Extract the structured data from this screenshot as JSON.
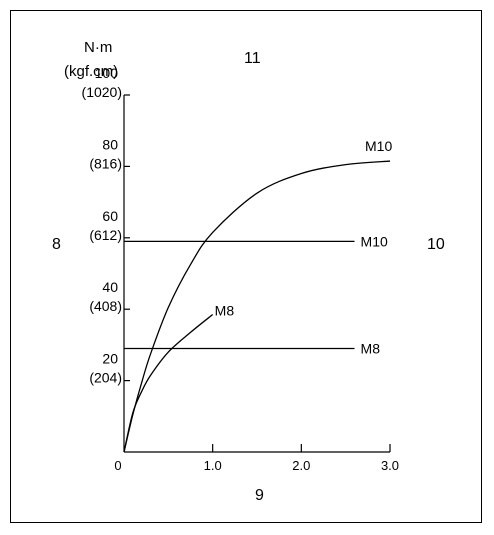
{
  "chart_data": {
    "type": "line",
    "ylabel_lines": [
      "N·m",
      "(kgf.cm)"
    ],
    "xlim": [
      0,
      3.0
    ],
    "ylim": [
      0,
      100
    ],
    "x_ticks": [
      {
        "value": 0,
        "label": "0"
      },
      {
        "value": 1.0,
        "label": "1.0"
      },
      {
        "value": 2.0,
        "label": "2.0"
      },
      {
        "value": 3.0,
        "label": "3.0"
      }
    ],
    "y_ticks": [
      {
        "value": 20,
        "label": "20",
        "sub": "(204)"
      },
      {
        "value": 40,
        "label": "40",
        "sub": "(408)"
      },
      {
        "value": 60,
        "label": "60",
        "sub": "(612)"
      },
      {
        "value": 80,
        "label": "80",
        "sub": "(816)"
      },
      {
        "value": 100,
        "label": "100",
        "sub": "(1020)"
      }
    ],
    "series": [
      {
        "name": "M10",
        "kind": "curve",
        "x": [
          0,
          0.1,
          0.2,
          0.3,
          0.5,
          0.75,
          1.0,
          1.5,
          2.0,
          2.5,
          3.0
        ],
        "y": [
          0,
          10.5,
          19.5,
          27.5,
          40.5,
          52.5,
          61.5,
          72.5,
          78.0,
          80.5,
          81.5
        ]
      },
      {
        "name": "M10",
        "kind": "flat",
        "x": [
          0,
          2.6
        ],
        "y": [
          59,
          59
        ]
      },
      {
        "name": "M8",
        "kind": "curve",
        "x": [
          0,
          0.1,
          0.2,
          0.3,
          0.5,
          0.75,
          1.0
        ],
        "y": [
          0,
          11,
          17,
          21.5,
          28,
          33.5,
          38.5
        ]
      },
      {
        "name": "M8",
        "kind": "flat",
        "x": [
          0,
          2.6
        ],
        "y": [
          29,
          29
        ]
      }
    ],
    "callouts": [
      "8",
      "9",
      "10",
      "11"
    ]
  }
}
